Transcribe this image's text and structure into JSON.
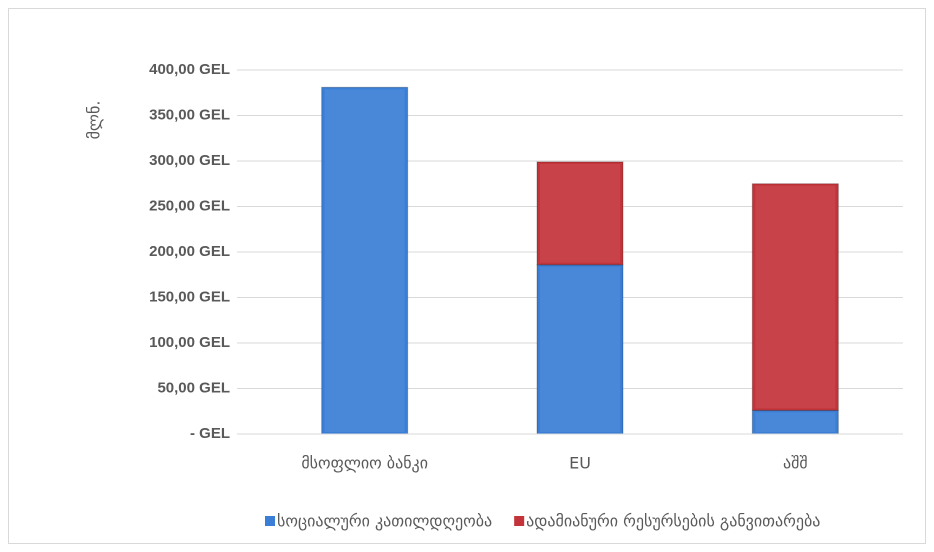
{
  "chart_data": {
    "type": "stacked-bar",
    "categories": [
      "მსოფლიო ბანკი",
      "EU",
      "აშშ"
    ],
    "y_label": "მლნ.",
    "series": [
      {
        "name": "სოციალური კათილდღეობა",
        "color": "#3a7ed6",
        "values": [
          381,
          186,
          26
        ]
      },
      {
        "name": "ადამიანური რესურსების განვითარება",
        "color": "#c3343a",
        "values": [
          0,
          113,
          249
        ]
      }
    ],
    "ylim": [
      0,
      400
    ],
    "yticks": [
      {
        "value": 0,
        "label": "-   GEL"
      },
      {
        "value": 50,
        "label": "50,00 GEL"
      },
      {
        "value": 100,
        "label": "100,00 GEL"
      },
      {
        "value": 150,
        "label": "150,00 GEL"
      },
      {
        "value": 200,
        "label": "200,00 GEL"
      },
      {
        "value": 250,
        "label": "250,00 GEL"
      },
      {
        "value": 300,
        "label": "300,00 GEL"
      },
      {
        "value": 350,
        "label": "350,00 GEL"
      },
      {
        "value": 400,
        "label": "400,00 GEL"
      }
    ],
    "grid": true,
    "legend": "bottom"
  }
}
